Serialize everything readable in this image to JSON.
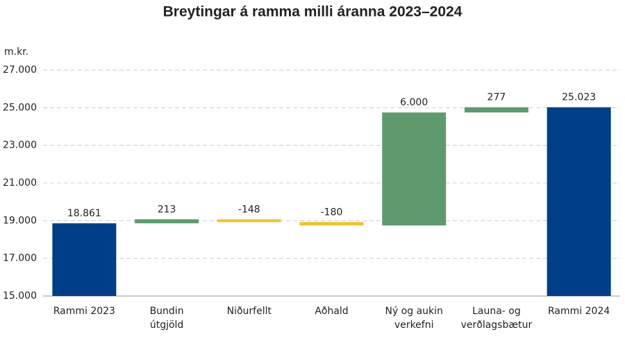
{
  "chart_data": {
    "type": "waterfall",
    "title": "Breytingar á ramma milli áranna 2023–2024",
    "y_label": "m.kr.",
    "categories": [
      [
        "Rammi 2023"
      ],
      [
        "Bundin",
        "útgjöld"
      ],
      [
        "Niðurfellt"
      ],
      [
        "Aðhald"
      ],
      [
        "Ný og aukin",
        "verkefni"
      ],
      [
        "Launa- og",
        "verðlagsbætur"
      ],
      [
        "Rammi 2024"
      ]
    ],
    "values": [
      18861,
      213,
      -148,
      -180,
      6000,
      277,
      25023
    ],
    "value_labels": [
      "18.861",
      "213",
      "-148",
      "-180",
      "6.000",
      "277",
      "25.023"
    ],
    "measure": [
      "total",
      "relative",
      "relative",
      "relative",
      "relative",
      "relative",
      "total"
    ],
    "colors": [
      "#003f87",
      "#5e9a6e",
      "#f2c12e",
      "#f2c12e",
      "#5e9a6e",
      "#5e9a6e",
      "#003f87"
    ],
    "ylim": [
      15000,
      27000
    ],
    "yticks": [
      {
        "value": 15000,
        "label": "15.000"
      },
      {
        "value": 17000,
        "label": "17.000"
      },
      {
        "value": 19000,
        "label": "19.000"
      },
      {
        "value": 21000,
        "label": "21.000"
      },
      {
        "value": 23000,
        "label": "23.000"
      },
      {
        "value": 25000,
        "label": "25.000"
      },
      {
        "value": 27000,
        "label": "27.000"
      }
    ],
    "grid": true
  }
}
